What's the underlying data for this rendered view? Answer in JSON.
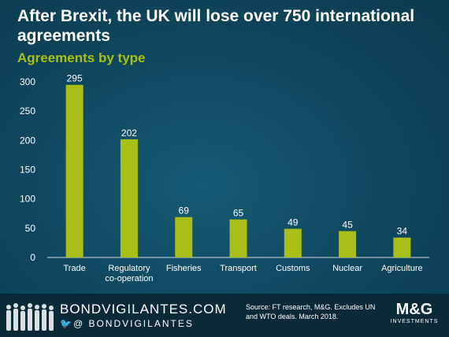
{
  "header": {
    "title": "After Brexit, the UK will lose over 750 international agreements"
  },
  "chart_data": {
    "type": "bar",
    "title": "Agreements by type",
    "categories": [
      "Trade",
      "Regulatory co-operation",
      "Fisheries",
      "Transport",
      "Customs",
      "Nuclear",
      "Agriculture"
    ],
    "values": [
      295,
      202,
      69,
      65,
      49,
      45,
      34
    ],
    "ylim": [
      0,
      300
    ],
    "yticks": [
      0,
      50,
      100,
      150,
      200,
      250,
      300
    ],
    "xlabel": "",
    "ylabel": "",
    "grid": false,
    "bar_color": "#a9bf18"
  },
  "footer": {
    "brand": "BONDVIGILANTES.COM",
    "handle": "@ BONDVIGILANTES",
    "source": "Source: FT research, M&G. Excludes UN and WTO deals. March 2018.",
    "logo_main": "M&G",
    "logo_sub": "INVESTMENTS"
  },
  "colors": {
    "background": "#0f4a61",
    "accent": "#a9bf18",
    "footer": "#0b2a38"
  }
}
